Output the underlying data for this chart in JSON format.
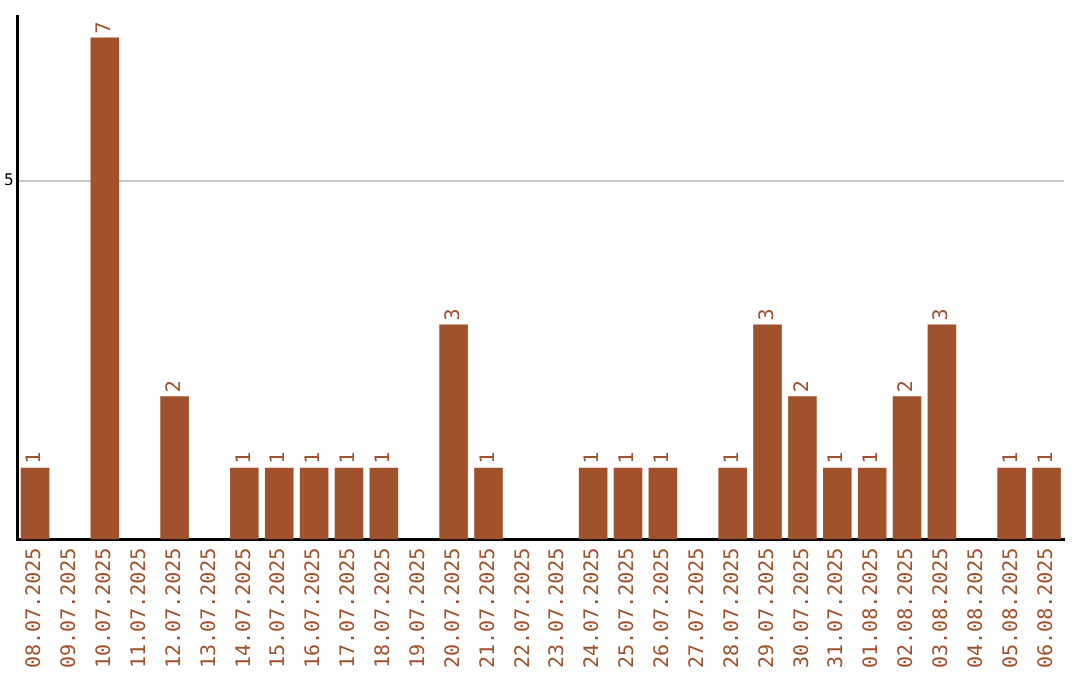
{
  "chart_data": {
    "type": "bar",
    "categories": [
      "08.07.2025",
      "09.07.2025",
      "10.07.2025",
      "11.07.2025",
      "12.07.2025",
      "13.07.2025",
      "14.07.2025",
      "15.07.2025",
      "16.07.2025",
      "17.07.2025",
      "18.07.2025",
      "19.07.2025",
      "20.07.2025",
      "21.07.2025",
      "22.07.2025",
      "23.07.2025",
      "24.07.2025",
      "25.07.2025",
      "26.07.2025",
      "27.07.2025",
      "28.07.2025",
      "29.07.2025",
      "30.07.2025",
      "31.07.2025",
      "01.08.2025",
      "02.08.2025",
      "03.08.2025",
      "04.08.2025",
      "05.08.2025",
      "06.08.2025"
    ],
    "values": [
      1,
      0,
      7,
      0,
      2,
      0,
      1,
      1,
      1,
      1,
      1,
      0,
      3,
      1,
      0,
      0,
      1,
      1,
      1,
      0,
      1,
      3,
      2,
      1,
      1,
      2,
      3,
      0,
      1,
      1
    ],
    "value_labels": [
      "1",
      null,
      "7",
      null,
      "2",
      null,
      "1",
      "1",
      "1",
      "1",
      "1",
      null,
      "3",
      "1",
      null,
      null,
      "1",
      "1",
      "1",
      null,
      "1",
      "3",
      "2",
      "1",
      "1",
      "2",
      "3",
      null,
      "1",
      "1"
    ],
    "color": "#a0522d",
    "ylim": [
      0,
      7.3
    ],
    "yticks": [
      5
    ],
    "grid": "y",
    "legend": false
  }
}
